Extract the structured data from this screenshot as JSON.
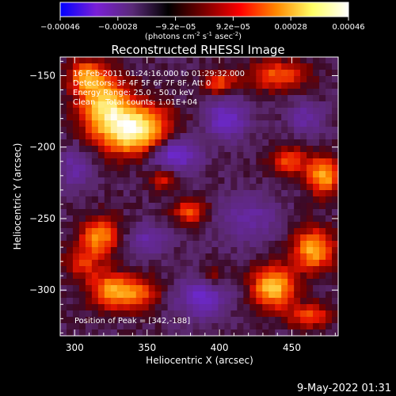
{
  "chart_data": {
    "type": "heatmap",
    "title": "Reconstructed RHESSI Image",
    "xlabel": "Heliocentric X (arcsec)",
    "ylabel": "Heliocentric Y (arcsec)",
    "xlim": [
      290,
      482
    ],
    "ylim": [
      -332,
      -137
    ],
    "xticks": [
      300,
      350,
      400,
      450
    ],
    "yticks": [
      -150,
      -200,
      -250,
      -300
    ],
    "colorbar": {
      "range": [
        -0.00046,
        0.00046
      ],
      "tick_labels": [
        "-0.00046",
        "-0.00028",
        "-9.2e-05",
        "9.2e-05",
        "0.00028",
        "0.00046"
      ],
      "unit_main": "(photons cm",
      "unit_exp1": "-2",
      "unit_mid": " s",
      "unit_exp2": "-1",
      "unit_mid2": " asec",
      "unit_exp3": "-2",
      "unit_end": ")",
      "colors": [
        "#0000ff",
        "#7a1fd6",
        "#5a2a78",
        "#000000",
        "#7a0000",
        "#ff0000",
        "#ff8800",
        "#ffff66",
        "#ffffff"
      ]
    },
    "annotations": [
      "16-Feb-2011 01:24:16.000 to 01:29:32.000",
      "Detectors: 3F 4F 5F 6F 7F 8F, Att 0",
      "Energy Range: 25.0 - 50.0 keV",
      "Clean    Total counts: 1.01E+04"
    ],
    "peak_label": "Position of Peak = [342,-188]",
    "blobs": [
      {
        "x": 342,
        "y": -188,
        "amp": 1.0,
        "sx": 16,
        "sy": 12
      },
      {
        "x": 320,
        "y": -170,
        "amp": 0.75,
        "sx": 12,
        "sy": 14
      },
      {
        "x": 308,
        "y": -150,
        "amp": 0.55,
        "sx": 8,
        "sy": 8
      },
      {
        "x": 318,
        "y": -262,
        "amp": 0.6,
        "sx": 9,
        "sy": 9
      },
      {
        "x": 306,
        "y": -280,
        "amp": 0.35,
        "sx": 9,
        "sy": 9
      },
      {
        "x": 340,
        "y": -302,
        "amp": 0.55,
        "sx": 12,
        "sy": 8
      },
      {
        "x": 322,
        "y": -300,
        "amp": 0.45,
        "sx": 9,
        "sy": 9
      },
      {
        "x": 437,
        "y": -298,
        "amp": 0.8,
        "sx": 10,
        "sy": 10
      },
      {
        "x": 465,
        "y": -272,
        "amp": 0.7,
        "sx": 10,
        "sy": 10
      },
      {
        "x": 472,
        "y": -220,
        "amp": 0.7,
        "sx": 8,
        "sy": 9
      },
      {
        "x": 448,
        "y": -210,
        "amp": 0.45,
        "sx": 9,
        "sy": 7
      },
      {
        "x": 440,
        "y": -150,
        "amp": 0.5,
        "sx": 14,
        "sy": 7
      },
      {
        "x": 400,
        "y": -155,
        "amp": 0.45,
        "sx": 8,
        "sy": 6
      },
      {
        "x": 380,
        "y": -245,
        "amp": 0.45,
        "sx": 8,
        "sy": 6
      },
      {
        "x": 462,
        "y": -318,
        "amp": 0.45,
        "sx": 10,
        "sy": 6
      },
      {
        "x": 362,
        "y": -222,
        "amp": 0.35,
        "sx": 7,
        "sy": 6
      },
      {
        "x": 395,
        "y": -290,
        "amp": 0.25,
        "sx": 7,
        "sy": 6
      },
      {
        "x": 368,
        "y": -205,
        "amp": -0.55,
        "sx": 12,
        "sy": 9
      },
      {
        "x": 405,
        "y": -180,
        "amp": -0.45,
        "sx": 10,
        "sy": 10
      },
      {
        "x": 388,
        "y": -305,
        "amp": -0.45,
        "sx": 12,
        "sy": 10
      },
      {
        "x": 420,
        "y": -250,
        "amp": -0.3,
        "sx": 14,
        "sy": 12
      },
      {
        "x": 300,
        "y": -215,
        "amp": -0.3,
        "sx": 8,
        "sy": 10
      },
      {
        "x": 460,
        "y": -180,
        "amp": -0.3,
        "sx": 9,
        "sy": 8
      },
      {
        "x": 350,
        "y": -265,
        "amp": -0.3,
        "sx": 10,
        "sy": 8
      }
    ]
  },
  "footer": {
    "timestamp": "9-May-2022 01:31"
  }
}
